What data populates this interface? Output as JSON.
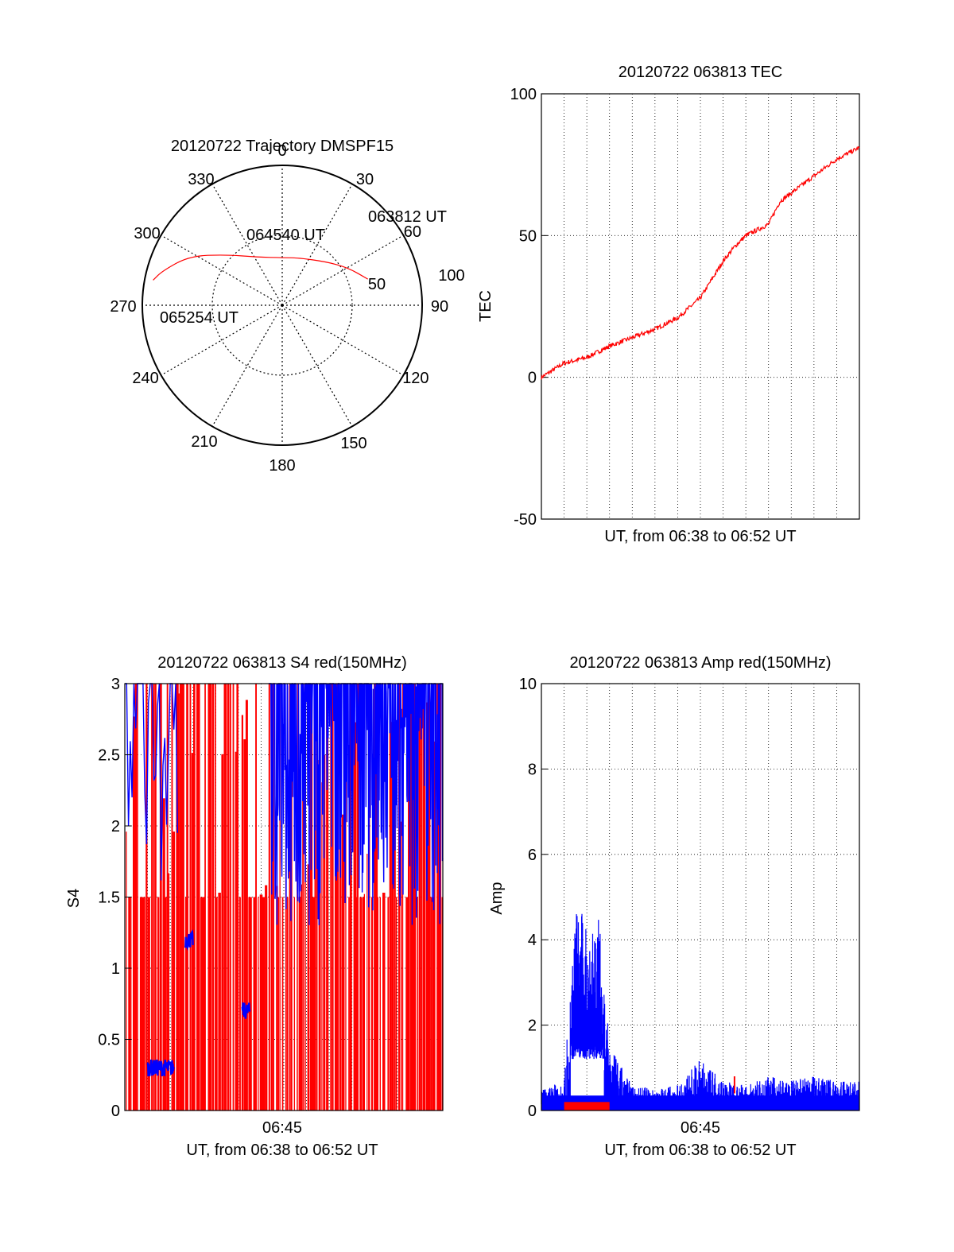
{
  "colors": {
    "primary": "#ff0000",
    "secondary": "#0000ff",
    "axis": "#000000"
  },
  "chart_data": [
    {
      "type": "polar",
      "title": "20120722 Trajectory DMSPF15",
      "angle_labels": [
        "0",
        "30",
        "60",
        "90",
        "120",
        "150",
        "180",
        "210",
        "240",
        "270",
        "300",
        "330"
      ],
      "radius_labels": [
        "50",
        "100"
      ],
      "rlim": [
        0,
        100
      ],
      "trajectory": {
        "points": [
          {
            "az": 73,
            "zen": 64
          },
          {
            "az": 60,
            "zen": 54
          },
          {
            "az": 45,
            "zen": 44
          },
          {
            "az": 20,
            "zen": 36
          },
          {
            "az": 2,
            "zen": 34
          },
          {
            "az": -28,
            "zen": 39
          },
          {
            "az": -48,
            "zen": 54
          },
          {
            "az": -62,
            "zen": 75
          },
          {
            "az": -74,
            "zen": 89
          },
          {
            "az": -79,
            "zen": 94
          }
        ]
      },
      "annotations": [
        "063812 UT",
        "064540 UT",
        "065254 UT"
      ]
    },
    {
      "type": "line",
      "title": "20120722 063813 TEC",
      "xlabel": "UT, from 06:38 to 06:52 UT",
      "ylabel": "TEC",
      "ylim": [
        -50,
        100
      ],
      "y_ticks": [
        "-50",
        "0",
        "50",
        "100"
      ],
      "xlim": [
        "06:38",
        "06:52"
      ],
      "grid": true,
      "series": [
        {
          "color": "red",
          "x": [
            "06:38",
            "06:39",
            "06:40",
            "06:41",
            "06:42",
            "06:43",
            "06:44",
            "06:45",
            "06:46",
            "06:46:30",
            "06:47",
            "06:48",
            "06:48:30",
            "06:49",
            "06:50",
            "06:51",
            "06:52"
          ],
          "values": [
            0,
            5,
            7,
            11,
            14,
            17,
            21,
            28,
            41,
            46,
            50,
            54,
            62,
            65,
            71,
            77,
            81
          ]
        }
      ]
    },
    {
      "type": "bar",
      "title": "20120722 063813 S4 red(150MHz)",
      "xlabel": "UT, from 06:38 to 06:52 UT",
      "ylabel": "S4",
      "ylim": [
        0,
        3
      ],
      "y_ticks": [
        "0",
        "0.5",
        "1",
        "1.5",
        "2",
        "2.5",
        "3"
      ],
      "x_ticks": [
        "06:45"
      ],
      "grid": true,
      "series": [
        {
          "color": "red",
          "pattern": "saturated spikes between 0 and 1.5-3"
        },
        {
          "color": "blue",
          "segments": [
            {
              "from": "06:39",
              "to": "06:40:10",
              "level": 0.3
            },
            {
              "from": "06:40:40",
              "to": "06:41",
              "level": 1.2
            },
            {
              "from": "06:43:10",
              "to": "06:43:30",
              "level": 0.7
            },
            {
              "from": "06:44:20",
              "to": "06:52",
              "level": 2.4
            }
          ]
        }
      ]
    },
    {
      "type": "line",
      "title": "20120722 063813 Amp red(150MHz)",
      "xlabel": "UT, from 06:38 to 06:52 UT",
      "ylabel": "Amp",
      "ylim": [
        0,
        10
      ],
      "y_ticks": [
        "0",
        "2",
        "4",
        "6",
        "8",
        "10"
      ],
      "x_ticks": [
        "06:45"
      ],
      "grid": true,
      "series": [
        {
          "color": "blue",
          "x": [
            "06:38",
            "06:39",
            "06:39:30",
            "06:40",
            "06:40:30",
            "06:41",
            "06:42",
            "06:43",
            "06:44",
            "06:45",
            "06:46",
            "06:47",
            "06:48",
            "06:49",
            "06:50",
            "06:51",
            "06:52"
          ],
          "values": [
            0.5,
            0.7,
            4.8,
            4.5,
            4.7,
            1.5,
            0.6,
            0.5,
            0.6,
            1.2,
            0.7,
            0.6,
            0.8,
            0.7,
            0.8,
            0.7,
            0.7
          ]
        },
        {
          "color": "red",
          "x": [
            "06:39",
            "06:41",
            "06:46:30"
          ],
          "values": [
            0.2,
            0.2,
            0.8
          ]
        }
      ]
    }
  ]
}
